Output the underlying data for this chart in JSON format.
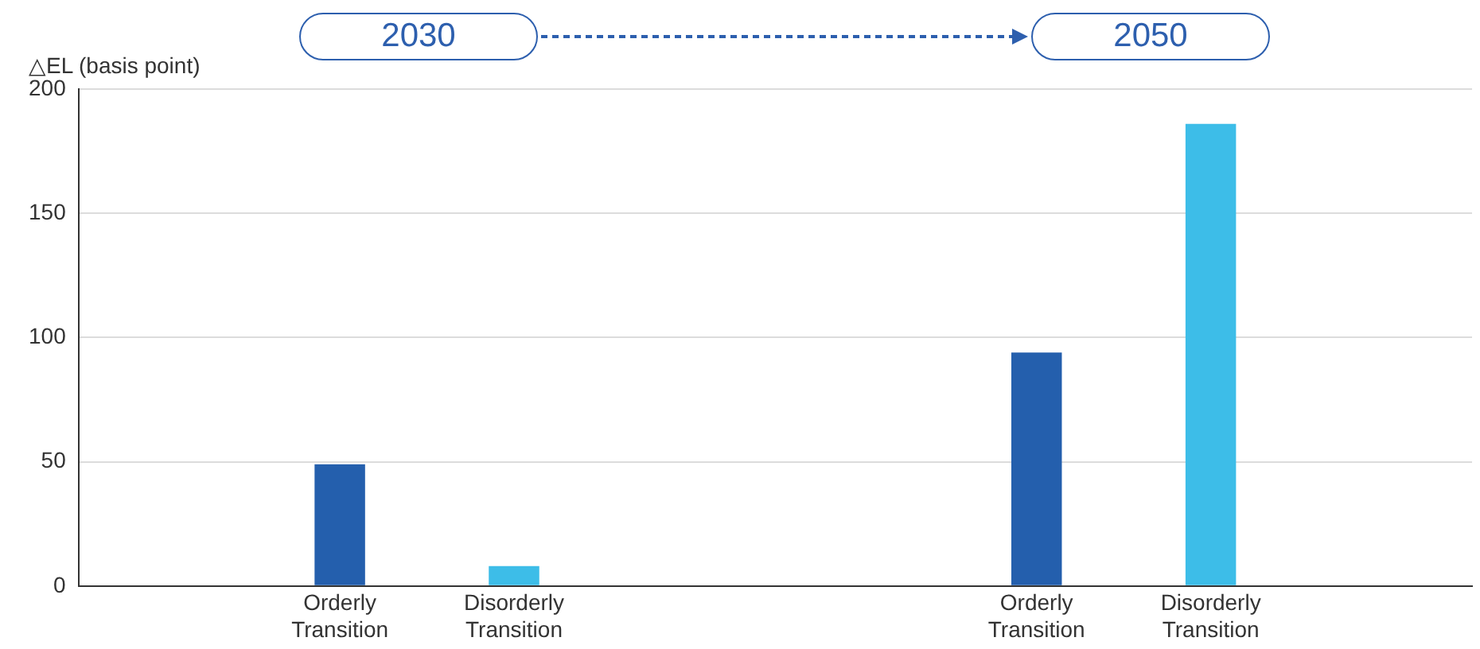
{
  "chart_data": {
    "type": "bar",
    "ylabel": "△EL (basis point)",
    "categories": [
      null,
      "Orderly Transition",
      "Disorderly Transition",
      null,
      null,
      "Orderly Transition",
      "Disorderly Transition",
      null
    ],
    "values": [
      null,
      49,
      8,
      null,
      null,
      94,
      186,
      null
    ],
    "colors": [
      "#245fad",
      "#245fad",
      "#3dbde8",
      "#245fad",
      "#245fad",
      "#245fad",
      "#3dbde8",
      "#245fad"
    ],
    "ylim": [
      0,
      200
    ],
    "yticks": [
      0,
      50,
      100,
      150,
      200
    ],
    "grid": "y",
    "annotations": [
      "2030",
      "2050"
    ]
  }
}
